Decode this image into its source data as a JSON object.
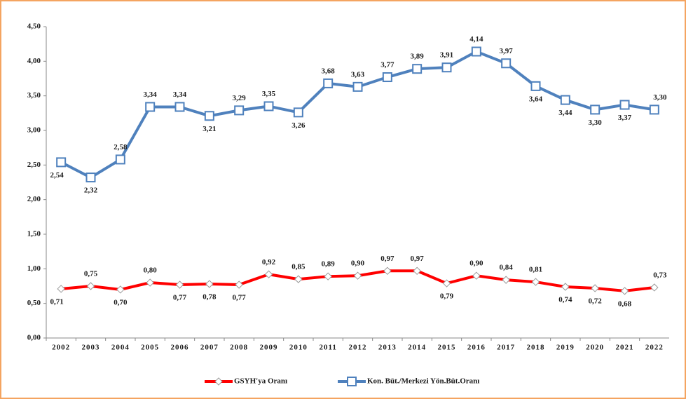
{
  "chart_data": {
    "type": "line",
    "categories": [
      "2002",
      "2003",
      "2004",
      "2005",
      "2006",
      "2007",
      "2008",
      "2009",
      "2010",
      "2011",
      "2012",
      "2013",
      "2014",
      "2015",
      "2016",
      "2017",
      "2018",
      "2019",
      "2020",
      "2021",
      "2022"
    ],
    "series": [
      {
        "name": "GSYH'ya Oranı",
        "color": "#ff0000",
        "marker": "diamond",
        "values": [
          0.71,
          0.75,
          0.7,
          0.8,
          0.77,
          0.78,
          0.77,
          0.92,
          0.85,
          0.89,
          0.9,
          0.97,
          0.97,
          0.79,
          0.9,
          0.84,
          0.81,
          0.74,
          0.72,
          0.68,
          0.73
        ],
        "value_labels": [
          "0,71",
          "0,75",
          "0,70",
          "0,80",
          "0,77",
          "0,78",
          "0,77",
          "0,92",
          "0,85",
          "0,89",
          "0,90",
          "0,97",
          "0,97",
          "0,79",
          "0,90",
          "0,84",
          "0,81",
          "0,74",
          "0,72",
          "0,68",
          "0,73"
        ]
      },
      {
        "name": "Kon. Büt./Merkezi Yön.Büt.Oranı",
        "color": "#4f81bd",
        "marker": "square",
        "values": [
          2.54,
          2.32,
          2.58,
          3.34,
          3.34,
          3.21,
          3.29,
          3.35,
          3.26,
          3.68,
          3.63,
          3.77,
          3.89,
          3.91,
          4.14,
          3.97,
          3.64,
          3.44,
          3.3,
          3.37,
          3.3
        ],
        "value_labels": [
          "2,54",
          "2,32",
          "2,58",
          "3,34",
          "3,34",
          "3,21",
          "3,29",
          "3,35",
          "3,26",
          "3,68",
          "3,63",
          "3,77",
          "3,89",
          "3,91",
          "4,14",
          "3,97",
          "3,64",
          "3,44",
          "3,30",
          "3,37",
          "3,30"
        ]
      }
    ],
    "ylim": [
      0,
      4.5
    ],
    "yticks": [
      {
        "value": 0,
        "label": "0,00"
      },
      {
        "value": 0.5,
        "label": "0,50"
      },
      {
        "value": 1,
        "label": "1,00"
      },
      {
        "value": 1.5,
        "label": "1,50"
      },
      {
        "value": 2,
        "label": "2,00"
      },
      {
        "value": 2.5,
        "label": "2,50"
      },
      {
        "value": 3,
        "label": "3,00"
      },
      {
        "value": 3.5,
        "label": "3,50"
      },
      {
        "value": 4,
        "label": "4,00"
      },
      {
        "value": 4.5,
        "label": "4,50"
      }
    ],
    "grid": false,
    "legend": "bottom"
  }
}
